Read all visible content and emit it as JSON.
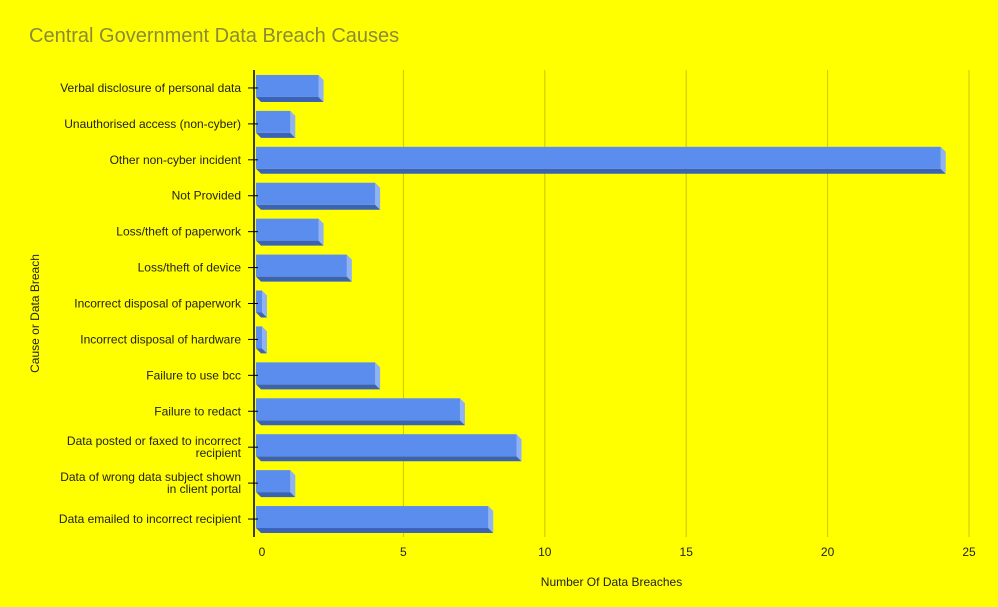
{
  "chart_data": {
    "type": "bar",
    "orientation": "horizontal",
    "title": "Central Government Data Breach Causes",
    "xlabel": "Number Of Data Breaches",
    "ylabel": "Cause or Data Breach",
    "categories": [
      "Verbal disclosure of personal data",
      "Unauthorised access (non-cyber)",
      "Other non-cyber incident",
      "Not Provided",
      "Loss/theft of paperwork",
      "Loss/theft of device",
      "Incorrect disposal of paperwork",
      "Incorrect disposal of hardware",
      "Failure to use bcc",
      "Failure to redact",
      "Data posted or faxed to incorrect recipient",
      "Data of wrong data subject shown in client portal",
      "Data emailed to incorrect recipient"
    ],
    "category_lines": [
      [
        "Verbal disclosure of personal data"
      ],
      [
        "Unauthorised access (non-cyber)"
      ],
      [
        "Other non-cyber incident"
      ],
      [
        "Not Provided"
      ],
      [
        "Loss/theft of paperwork"
      ],
      [
        "Loss/theft of device"
      ],
      [
        "Incorrect disposal of paperwork"
      ],
      [
        "Incorrect disposal of hardware"
      ],
      [
        "Failure to use bcc"
      ],
      [
        "Failure to redact"
      ],
      [
        "Data posted or faxed to incorrect",
        "recipient"
      ],
      [
        "Data of wrong data subject shown",
        "in client portal"
      ],
      [
        "Data emailed to incorrect recipient"
      ]
    ],
    "values": [
      2,
      1,
      24,
      4,
      2,
      3,
      0,
      0,
      4,
      7,
      9,
      1,
      8
    ],
    "xlim": [
      0,
      25
    ],
    "xticks": [
      0,
      5,
      10,
      15,
      20,
      25
    ],
    "grid": true,
    "legend": "none",
    "colors": {
      "background": "#ffff00",
      "bar_face": "#5b8def",
      "bar_side": "#8fb1f5",
      "bar_bottom": "#3a63b8",
      "grid": "#c8c800",
      "title": "#8a8a3a",
      "axis": "#000000",
      "text": "#222222"
    }
  }
}
